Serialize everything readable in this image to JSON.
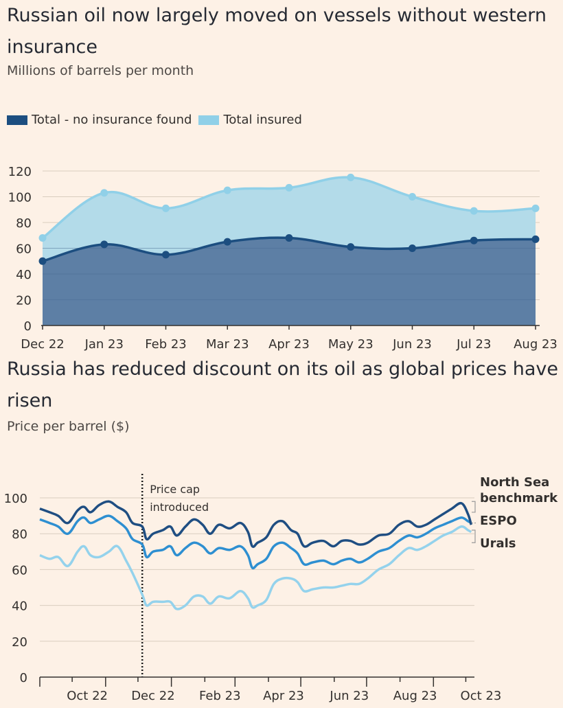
{
  "chart_data": [
    {
      "type": "area",
      "title": "Russian oil now largely moved on vessels without western insurance",
      "subtitle": "Millions of barrels per month",
      "categories": [
        "Dec 22",
        "Jan 23",
        "Feb 23",
        "Mar 23",
        "Apr 23",
        "May 23",
        "Jun 23",
        "Jul 23",
        "Aug 23"
      ],
      "series": [
        {
          "name": "Total - no insurance found",
          "color": "#1c4e80",
          "values": [
            50,
            63,
            55,
            65,
            68,
            61,
            60,
            66,
            67
          ]
        },
        {
          "name": "Total insured",
          "color": "#90d0e8",
          "values": [
            68,
            103,
            91,
            105,
            107,
            115,
            100,
            89,
            91
          ]
        }
      ],
      "yticks": [
        0,
        20,
        40,
        60,
        80,
        100,
        120
      ],
      "ylim": [
        0,
        120
      ],
      "legend": "top-left",
      "grid": true
    },
    {
      "type": "line",
      "title": "Russia has reduced discount on its oil as global prices have risen",
      "subtitle": "Price per barrel ($)",
      "xticks": [
        {
          "label": "Oct 22",
          "date": "2022-10-15"
        },
        {
          "label": "Dec 22",
          "date": "2022-12-15"
        },
        {
          "label": "Feb 23",
          "date": "2023-02-15"
        },
        {
          "label": "Apr 23",
          "date": "2023-04-15"
        },
        {
          "label": "Jun 23",
          "date": "2023-06-15"
        },
        {
          "label": "Aug 23",
          "date": "2023-08-15"
        },
        {
          "label": "Oct 23",
          "date": "2023-10-15"
        }
      ],
      "x_range": [
        "2022-09-01",
        "2023-10-09"
      ],
      "yticks": [
        0,
        20,
        40,
        60,
        80,
        100
      ],
      "ylim": [
        0,
        105
      ],
      "annotation": {
        "text_lines": [
          "Price cap",
          "introduced"
        ],
        "date": "2022-12-05"
      },
      "series": [
        {
          "name": "North Sea benchmark",
          "label_lines": [
            "North Sea",
            "benchmark"
          ],
          "color": "#1f4e82",
          "points": [
            [
              "2022-09-01",
              94
            ],
            [
              "2022-09-10",
              92
            ],
            [
              "2022-09-18",
              90
            ],
            [
              "2022-09-27",
              86
            ],
            [
              "2022-10-06",
              93
            ],
            [
              "2022-10-12",
              95
            ],
            [
              "2022-10-18",
              92
            ],
            [
              "2022-10-26",
              96
            ],
            [
              "2022-11-04",
              98
            ],
            [
              "2022-11-12",
              95
            ],
            [
              "2022-11-20",
              92
            ],
            [
              "2022-11-26",
              86
            ],
            [
              "2022-12-05",
              84
            ],
            [
              "2022-12-09",
              77
            ],
            [
              "2022-12-15",
              80
            ],
            [
              "2022-12-24",
              82
            ],
            [
              "2022-12-31",
              84
            ],
            [
              "2023-01-06",
              79
            ],
            [
              "2023-01-14",
              84
            ],
            [
              "2023-01-22",
              88
            ],
            [
              "2023-01-30",
              85
            ],
            [
              "2023-02-06",
              80
            ],
            [
              "2023-02-14",
              85
            ],
            [
              "2023-02-24",
              83
            ],
            [
              "2023-03-06",
              86
            ],
            [
              "2023-03-13",
              81
            ],
            [
              "2023-03-17",
              73
            ],
            [
              "2023-03-22",
              75
            ],
            [
              "2023-03-30",
              78
            ],
            [
              "2023-04-06",
              85
            ],
            [
              "2023-04-14",
              87
            ],
            [
              "2023-04-22",
              82
            ],
            [
              "2023-04-28",
              80
            ],
            [
              "2023-05-04",
              73
            ],
            [
              "2023-05-12",
              75
            ],
            [
              "2023-05-22",
              76
            ],
            [
              "2023-05-31",
              73
            ],
            [
              "2023-06-08",
              76
            ],
            [
              "2023-06-16",
              76
            ],
            [
              "2023-06-24",
              74
            ],
            [
              "2023-07-02",
              75
            ],
            [
              "2023-07-12",
              79
            ],
            [
              "2023-07-22",
              80
            ],
            [
              "2023-07-31",
              85
            ],
            [
              "2023-08-09",
              87
            ],
            [
              "2023-08-17",
              84
            ],
            [
              "2023-08-25",
              85
            ],
            [
              "2023-09-02",
              88
            ],
            [
              "2023-09-10",
              91
            ],
            [
              "2023-09-18",
              94
            ],
            [
              "2023-09-27",
              97
            ],
            [
              "2023-10-03",
              91
            ],
            [
              "2023-10-06",
              85
            ]
          ]
        },
        {
          "name": "ESPO",
          "label_lines": [
            "ESPO"
          ],
          "color": "#2e8fd1",
          "points": [
            [
              "2022-09-01",
              88
            ],
            [
              "2022-09-10",
              86
            ],
            [
              "2022-09-18",
              84
            ],
            [
              "2022-09-27",
              80
            ],
            [
              "2022-10-06",
              87
            ],
            [
              "2022-10-12",
              89
            ],
            [
              "2022-10-18",
              86
            ],
            [
              "2022-10-26",
              88
            ],
            [
              "2022-11-04",
              90
            ],
            [
              "2022-11-12",
              87
            ],
            [
              "2022-11-20",
              83
            ],
            [
              "2022-11-26",
              77
            ],
            [
              "2022-12-05",
              74
            ],
            [
              "2022-12-09",
              67
            ],
            [
              "2022-12-15",
              70
            ],
            [
              "2022-12-24",
              71
            ],
            [
              "2022-12-31",
              73
            ],
            [
              "2023-01-06",
              68
            ],
            [
              "2023-01-14",
              72
            ],
            [
              "2023-01-22",
              75
            ],
            [
              "2023-01-30",
              73
            ],
            [
              "2023-02-06",
              69
            ],
            [
              "2023-02-14",
              72
            ],
            [
              "2023-02-24",
              71
            ],
            [
              "2023-03-06",
              73
            ],
            [
              "2023-03-13",
              68
            ],
            [
              "2023-03-17",
              61
            ],
            [
              "2023-03-22",
              63
            ],
            [
              "2023-03-30",
              66
            ],
            [
              "2023-04-06",
              73
            ],
            [
              "2023-04-14",
              75
            ],
            [
              "2023-04-22",
              72
            ],
            [
              "2023-04-28",
              69
            ],
            [
              "2023-05-04",
              63
            ],
            [
              "2023-05-12",
              64
            ],
            [
              "2023-05-22",
              65
            ],
            [
              "2023-05-31",
              63
            ],
            [
              "2023-06-08",
              65
            ],
            [
              "2023-06-16",
              66
            ],
            [
              "2023-06-24",
              64
            ],
            [
              "2023-07-02",
              66
            ],
            [
              "2023-07-12",
              70
            ],
            [
              "2023-07-22",
              72
            ],
            [
              "2023-07-31",
              76
            ],
            [
              "2023-08-09",
              79
            ],
            [
              "2023-08-17",
              78
            ],
            [
              "2023-08-25",
              80
            ],
            [
              "2023-09-02",
              83
            ],
            [
              "2023-09-10",
              85
            ],
            [
              "2023-09-18",
              87
            ],
            [
              "2023-09-27",
              89
            ],
            [
              "2023-10-03",
              87
            ],
            [
              "2023-10-06",
              86
            ]
          ]
        },
        {
          "name": "Urals",
          "label_lines": [
            "Urals"
          ],
          "color": "#94d2ec",
          "points": [
            [
              "2022-09-01",
              68
            ],
            [
              "2022-09-10",
              66
            ],
            [
              "2022-09-18",
              67
            ],
            [
              "2022-09-27",
              62
            ],
            [
              "2022-10-06",
              70
            ],
            [
              "2022-10-12",
              73
            ],
            [
              "2022-10-18",
              68
            ],
            [
              "2022-10-26",
              67
            ],
            [
              "2022-11-04",
              70
            ],
            [
              "2022-11-12",
              73
            ],
            [
              "2022-11-20",
              65
            ],
            [
              "2022-11-26",
              58
            ],
            [
              "2022-12-05",
              46
            ],
            [
              "2022-12-09",
              40
            ],
            [
              "2022-12-15",
              42
            ],
            [
              "2022-12-24",
              42
            ],
            [
              "2022-12-31",
              42
            ],
            [
              "2023-01-06",
              38
            ],
            [
              "2023-01-14",
              40
            ],
            [
              "2023-01-22",
              45
            ],
            [
              "2023-01-30",
              45
            ],
            [
              "2023-02-06",
              41
            ],
            [
              "2023-02-14",
              45
            ],
            [
              "2023-02-24",
              44
            ],
            [
              "2023-03-06",
              48
            ],
            [
              "2023-03-13",
              44
            ],
            [
              "2023-03-17",
              39
            ],
            [
              "2023-03-22",
              40
            ],
            [
              "2023-03-30",
              43
            ],
            [
              "2023-04-06",
              52
            ],
            [
              "2023-04-14",
              55
            ],
            [
              "2023-04-22",
              55
            ],
            [
              "2023-04-28",
              53
            ],
            [
              "2023-05-04",
              48
            ],
            [
              "2023-05-12",
              49
            ],
            [
              "2023-05-22",
              50
            ],
            [
              "2023-05-31",
              50
            ],
            [
              "2023-06-08",
              51
            ],
            [
              "2023-06-16",
              52
            ],
            [
              "2023-06-24",
              52
            ],
            [
              "2023-07-02",
              55
            ],
            [
              "2023-07-12",
              60
            ],
            [
              "2023-07-22",
              63
            ],
            [
              "2023-07-31",
              68
            ],
            [
              "2023-08-09",
              72
            ],
            [
              "2023-08-17",
              71
            ],
            [
              "2023-08-25",
              73
            ],
            [
              "2023-09-02",
              76
            ],
            [
              "2023-09-10",
              79
            ],
            [
              "2023-09-18",
              81
            ],
            [
              "2023-09-27",
              84
            ],
            [
              "2023-10-03",
              82
            ],
            [
              "2023-10-06",
              81
            ]
          ]
        }
      ],
      "grid": true
    }
  ]
}
